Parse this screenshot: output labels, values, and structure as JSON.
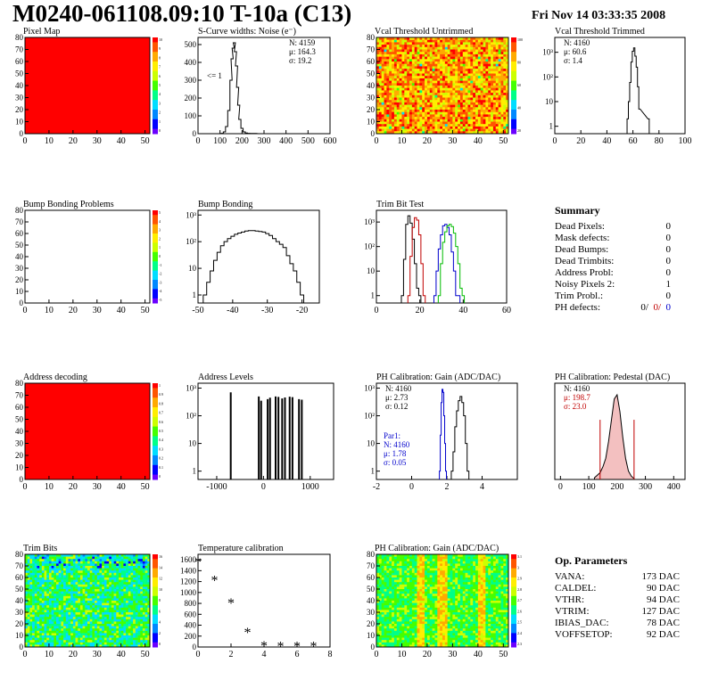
{
  "page": {
    "title": "M0240-061108.09:10 T-10a (C13)",
    "date": "Fri Nov 14 03:33:35 2008"
  },
  "summary": {
    "title": "Summary",
    "rows": [
      {
        "label": "Dead Pixels:",
        "value": "0"
      },
      {
        "label": "Mask defects:",
        "value": "0"
      },
      {
        "label": "Dead Bumps:",
        "value": "0"
      },
      {
        "label": "Dead Trimbits:",
        "value": "0"
      },
      {
        "label": "Address Probl:",
        "value": "0"
      },
      {
        "label": "Noisy Pixels 2:",
        "value": "1"
      },
      {
        "label": "Trim Probl.:",
        "value": "0"
      }
    ],
    "ph_label": "PH defects:",
    "ph_values": [
      "0/",
      "0/",
      "0"
    ]
  },
  "op_params": {
    "title": "Op. Parameters",
    "rows": [
      {
        "label": "VANA:",
        "value": "173 DAC"
      },
      {
        "label": "CALDEL:",
        "value": "90 DAC"
      },
      {
        "label": "VTHR:",
        "value": "94 DAC"
      },
      {
        "label": "VTRIM:",
        "value": "127 DAC"
      },
      {
        "label": "IBIAS_DAC:",
        "value": "78 DAC"
      },
      {
        "label": "VOFFSETOP:",
        "value": "92 DAC"
      }
    ]
  },
  "chart_data": [
    {
      "id": "pixel-map",
      "type": "heatmap",
      "title": "Pixel Map",
      "x_ticks": [
        "0",
        "10",
        "20",
        "30",
        "40",
        "50"
      ],
      "y_ticks": [
        "0",
        "10",
        "20",
        "30",
        "40",
        "50",
        "60",
        "70",
        "80"
      ],
      "xlim": [
        0,
        52
      ],
      "ylim": [
        0,
        80
      ],
      "fill": "uniform",
      "fill_color": "#ff0000",
      "palette_ticks": [
        "10",
        "9",
        "8",
        "7",
        "6",
        "5",
        "4",
        "3",
        "2",
        "1",
        "0"
      ]
    },
    {
      "id": "scurve",
      "type": "line",
      "title": "S-Curve widths: Noise (e⁻)",
      "x_ticks": [
        "0",
        "100",
        "200",
        "300",
        "400",
        "500",
        "600"
      ],
      "y_ticks": [
        "0",
        "100",
        "200",
        "300",
        "400",
        "500"
      ],
      "xlim": [
        0,
        600
      ],
      "ylim": [
        0,
        540
      ],
      "stats": [
        "N: 4159",
        "μ: 164.3",
        "σ: 19.2"
      ],
      "annotation": "<= 1",
      "x": [
        100,
        110,
        120,
        130,
        140,
        150,
        155,
        160,
        165,
        170,
        175,
        180,
        185,
        190,
        200,
        210,
        220,
        230,
        240,
        260,
        280
      ],
      "values": [
        0,
        2,
        10,
        40,
        130,
        300,
        420,
        480,
        510,
        460,
        380,
        260,
        160,
        80,
        30,
        10,
        4,
        2,
        1,
        1,
        0
      ]
    },
    {
      "id": "vcal-untrimmed",
      "type": "heatmap",
      "title": "Vcal Threshold Untrimmed",
      "x_ticks": [
        "0",
        "10",
        "20",
        "30",
        "40",
        "50"
      ],
      "y_ticks": [
        "0",
        "10",
        "20",
        "30",
        "40",
        "50",
        "60",
        "70",
        "80"
      ],
      "xlim": [
        0,
        52
      ],
      "ylim": [
        0,
        80
      ],
      "fill": "noise-orange",
      "palette_ticks": [
        "100",
        "80",
        "60",
        "40",
        "20"
      ]
    },
    {
      "id": "vcal-trimmed",
      "type": "line",
      "title": "Vcal Threshold Trimmed",
      "log_y": true,
      "x_ticks": [
        "0",
        "20",
        "40",
        "60",
        "80",
        "100"
      ],
      "y_ticks": [
        "1",
        "10",
        "10²",
        "10³"
      ],
      "xlim": [
        0,
        100
      ],
      "ylim_log": [
        0.5,
        4000
      ],
      "stats": [
        "N: 4160",
        "μ: 60.6",
        "σ: 1.4"
      ],
      "x": [
        56,
        57,
        58,
        59,
        60,
        61,
        62,
        63,
        64,
        65,
        72
      ],
      "values": [
        2,
        10,
        60,
        400,
        1100,
        1500,
        700,
        250,
        40,
        5,
        2
      ]
    },
    {
      "id": "bump-problems",
      "type": "heatmap",
      "title": "Bump Bonding Problems",
      "x_ticks": [
        "0",
        "10",
        "20",
        "30",
        "40",
        "50"
      ],
      "y_ticks": [
        "0",
        "10",
        "20",
        "30",
        "40",
        "50",
        "60",
        "70",
        "80"
      ],
      "xlim": [
        0,
        52
      ],
      "ylim": [
        0,
        80
      ],
      "fill": "empty",
      "palette_ticks": [
        "5",
        "4",
        "3",
        "2",
        "1",
        "0",
        "-1",
        "-2",
        "-3",
        "-4",
        "-5"
      ]
    },
    {
      "id": "bump-bonding",
      "type": "line",
      "title": "Bump Bonding",
      "log_y": true,
      "x_ticks": [
        "-50",
        "-40",
        "-30",
        "-20"
      ],
      "y_ticks": [
        "1",
        "10",
        "10²",
        "10³"
      ],
      "xlim": [
        -50,
        -15
      ],
      "ylim_log": [
        0.5,
        1500
      ],
      "x": [
        -48,
        -47,
        -46,
        -45,
        -44,
        -43,
        -42,
        -41,
        -40,
        -39,
        -38,
        -37,
        -36,
        -35,
        -34,
        -33,
        -32,
        -31,
        -30,
        -29,
        -28,
        -27,
        -26,
        -25,
        -24,
        -23,
        -22,
        -21,
        -20
      ],
      "values": [
        1,
        3,
        8,
        20,
        40,
        70,
        100,
        130,
        160,
        190,
        210,
        230,
        250,
        260,
        260,
        250,
        240,
        230,
        200,
        170,
        130,
        100,
        80,
        60,
        30,
        15,
        8,
        3,
        1
      ]
    },
    {
      "id": "trim-bit-test",
      "type": "line",
      "title": "Trim Bit Test",
      "log_y": true,
      "x_ticks": [
        "0",
        "20",
        "40",
        "60"
      ],
      "y_ticks": [
        "1",
        "10",
        "10²",
        "10³"
      ],
      "xlim": [
        0,
        60
      ],
      "ylim_log": [
        0.5,
        3000
      ],
      "series": [
        {
          "color": "#000000",
          "x": [
            12,
            13,
            14,
            15,
            16,
            17,
            18,
            19,
            20
          ],
          "values": [
            1,
            30,
            800,
            1800,
            900,
            200,
            20,
            2,
            1
          ]
        },
        {
          "color": "#c00000",
          "x": [
            15,
            16,
            17,
            18,
            19,
            20,
            21,
            22
          ],
          "values": [
            1,
            40,
            600,
            1500,
            1200,
            300,
            20,
            1
          ]
        },
        {
          "color": "#0000cc",
          "x": [
            27,
            28,
            29,
            30,
            31,
            32,
            33,
            34,
            35,
            36,
            37,
            38
          ],
          "values": [
            1,
            10,
            80,
            300,
            700,
            800,
            600,
            300,
            60,
            10,
            1,
            1
          ]
        },
        {
          "color": "#00bb00",
          "x": [
            29,
            30,
            31,
            32,
            33,
            34,
            35,
            36,
            37,
            38,
            39,
            40
          ],
          "values": [
            1,
            20,
            150,
            400,
            700,
            800,
            650,
            350,
            100,
            20,
            2,
            1
          ]
        }
      ]
    },
    {
      "id": "address-decoding",
      "type": "heatmap",
      "title": "Address decoding",
      "x_ticks": [
        "0",
        "10",
        "20",
        "30",
        "40",
        "50"
      ],
      "y_ticks": [
        "0",
        "10",
        "20",
        "30",
        "40",
        "50",
        "60",
        "70",
        "80"
      ],
      "xlim": [
        0,
        52
      ],
      "ylim": [
        0,
        80
      ],
      "fill": "uniform",
      "fill_color": "#ff0000",
      "palette_ticks": [
        "1",
        "0.9",
        "0.8",
        "0.7",
        "0.6",
        "0.5",
        "0.4",
        "0.3",
        "0.2",
        "0.1",
        "0"
      ]
    },
    {
      "id": "address-levels",
      "type": "bar",
      "title": "Address Levels",
      "log_y": true,
      "x_ticks": [
        "-1000",
        "0",
        "1000"
      ],
      "y_ticks": [
        "1",
        "10",
        "10²",
        "10³"
      ],
      "xlim": [
        -1400,
        1500
      ],
      "ylim_log": [
        0.5,
        1500
      ],
      "x": [
        -700,
        -100,
        -50,
        90,
        140,
        260,
        320,
        400,
        460,
        560,
        620,
        760,
        820
      ],
      "values": [
        700,
        500,
        350,
        400,
        450,
        500,
        480,
        420,
        460,
        490,
        470,
        400,
        380
      ]
    },
    {
      "id": "ph-gain",
      "type": "line",
      "title": "PH Calibration: Gain (ADC/DAC)",
      "log_y": true,
      "x_ticks": [
        "-2",
        "0",
        "2",
        "4"
      ],
      "y_ticks": [
        "1",
        "10",
        "10²",
        "10³"
      ],
      "xlim": [
        -2,
        6
      ],
      "ylim_log": [
        0.5,
        1500
      ],
      "stats": [
        "N: 4160",
        "μ: 2.73",
        "σ: 0.12"
      ],
      "stats2": [
        "Par1:",
        "N: 4160",
        "μ: 1.78",
        "σ: 0.05"
      ],
      "series": [
        {
          "color": "#000000",
          "x": [
            2.3,
            2.4,
            2.5,
            2.6,
            2.7,
            2.8,
            2.9,
            3.0,
            3.1,
            3.2
          ],
          "values": [
            1,
            5,
            40,
            150,
            350,
            500,
            300,
            100,
            10,
            1
          ]
        },
        {
          "color": "#0000cc",
          "x": [
            1.6,
            1.65,
            1.7,
            1.75,
            1.8,
            1.85,
            1.9,
            1.95
          ],
          "values": [
            1,
            20,
            300,
            900,
            700,
            100,
            10,
            1
          ]
        }
      ]
    },
    {
      "id": "ph-pedestal",
      "type": "line",
      "title": "PH Calibration: Pedestal (DAC)",
      "x_ticks": [
        "0",
        "100",
        "200",
        "300",
        "400"
      ],
      "y_ticks": [],
      "xlim": [
        -20,
        440
      ],
      "ylim": [
        0,
        1.1
      ],
      "stats": [
        "N: 4160",
        "μ: 198.7",
        "σ: 23.0"
      ],
      "x": [
        120,
        130,
        140,
        150,
        160,
        170,
        180,
        190,
        200,
        210,
        220,
        230,
        240,
        250,
        260
      ],
      "values": [
        0.02,
        0.05,
        0.08,
        0.15,
        0.25,
        0.45,
        0.7,
        0.95,
        1.0,
        0.8,
        0.5,
        0.25,
        0.1,
        0.04,
        0.01
      ],
      "cut_lines_x": [
        140,
        260
      ]
    },
    {
      "id": "trim-bits",
      "type": "heatmap",
      "title": "Trim Bits",
      "x_ticks": [
        "0",
        "10",
        "20",
        "30",
        "40",
        "50"
      ],
      "y_ticks": [
        "0",
        "10",
        "20",
        "30",
        "40",
        "50",
        "60",
        "70",
        "80"
      ],
      "xlim": [
        0,
        52
      ],
      "ylim": [
        0,
        80
      ],
      "fill": "noise-green",
      "palette_ticks": [
        "16",
        "14",
        "12",
        "10",
        "8",
        "6",
        "4",
        "2",
        "0"
      ]
    },
    {
      "id": "temperature",
      "type": "scatter",
      "title": "Temperature calibration",
      "x_ticks": [
        "0",
        "2",
        "4",
        "6",
        "8"
      ],
      "y_ticks": [
        "0",
        "200",
        "400",
        "600",
        "800",
        "1000",
        "1200",
        "1400",
        "1600"
      ],
      "xlim": [
        0,
        8
      ],
      "ylim": [
        0,
        1700
      ],
      "x": [
        0,
        1,
        2,
        3,
        4,
        5,
        6,
        7
      ],
      "values": [
        1550,
        1220,
        800,
        260,
        20,
        10,
        10,
        10
      ]
    },
    {
      "id": "ph-gain-map",
      "type": "heatmap",
      "title": "PH Calibration: Gain (ADC/DAC)",
      "x_ticks": [
        "0",
        "10",
        "20",
        "30",
        "40",
        "50"
      ],
      "y_ticks": [
        "0",
        "10",
        "20",
        "30",
        "40",
        "50",
        "60",
        "70",
        "80"
      ],
      "xlim": [
        0,
        52
      ],
      "ylim": [
        0,
        80
      ],
      "fill": "noise-green2",
      "palette_ticks": [
        "3.1",
        "3",
        "2.9",
        "2.8",
        "2.7",
        "2.6",
        "2.5",
        "2.4",
        "2.3"
      ]
    }
  ]
}
